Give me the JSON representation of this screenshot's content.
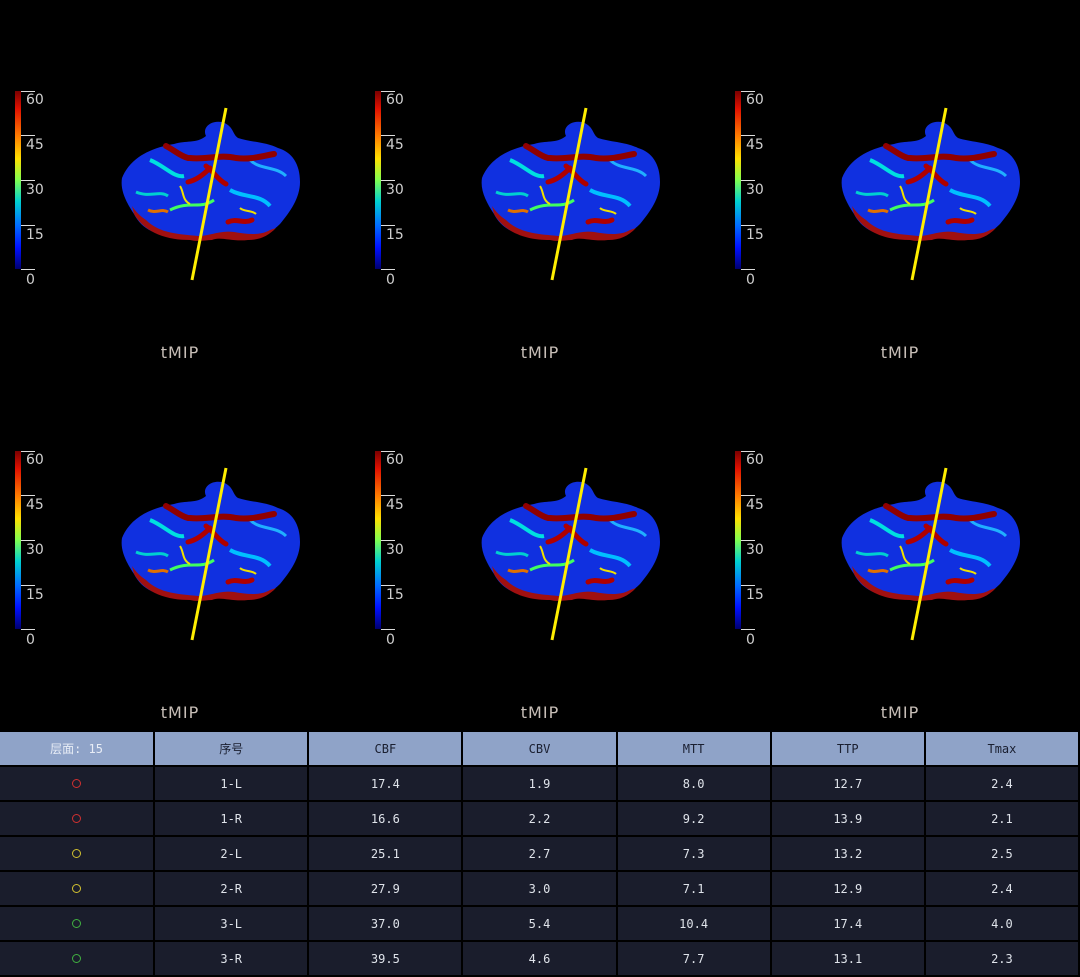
{
  "panels": [
    {
      "label": "tMIP",
      "scale_ticks": [
        "60",
        "45",
        "30",
        "15",
        "0"
      ]
    },
    {
      "label": "tMIP",
      "scale_ticks": [
        "60",
        "45",
        "30",
        "15",
        "0"
      ]
    },
    {
      "label": "tMIP",
      "scale_ticks": [
        "60",
        "45",
        "30",
        "15",
        "0"
      ]
    },
    {
      "label": "tMIP",
      "scale_ticks": [
        "60",
        "45",
        "30",
        "15",
        "0"
      ]
    },
    {
      "label": "tMIP",
      "scale_ticks": [
        "60",
        "45",
        "30",
        "15",
        "0"
      ]
    },
    {
      "label": "tMIP",
      "scale_ticks": [
        "60",
        "45",
        "30",
        "15",
        "0"
      ]
    }
  ],
  "table": {
    "headers": [
      "层面: 15",
      "序号",
      "CBF",
      "CBV",
      "MTT",
      "TTP",
      "Tmax"
    ],
    "rows": [
      {
        "marker_color": "#d03030",
        "id": "1-L",
        "cbf": "17.4",
        "cbv": "1.9",
        "mtt": "8.0",
        "ttp": "12.7",
        "tmax": "2.4"
      },
      {
        "marker_color": "#d03030",
        "id": "1-R",
        "cbf": "16.6",
        "cbv": "2.2",
        "mtt": "9.2",
        "ttp": "13.9",
        "tmax": "2.1"
      },
      {
        "marker_color": "#d0c030",
        "id": "2-L",
        "cbf": "25.1",
        "cbv": "2.7",
        "mtt": "7.3",
        "ttp": "13.2",
        "tmax": "2.5"
      },
      {
        "marker_color": "#d0c030",
        "id": "2-R",
        "cbf": "27.9",
        "cbv": "3.0",
        "mtt": "7.1",
        "ttp": "12.9",
        "tmax": "2.4"
      },
      {
        "marker_color": "#40b040",
        "id": "3-L",
        "cbf": "37.0",
        "cbv": "5.4",
        "mtt": "10.4",
        "ttp": "17.4",
        "tmax": "4.0"
      },
      {
        "marker_color": "#40b040",
        "id": "3-R",
        "cbf": "39.5",
        "cbv": "4.6",
        "mtt": "7.7",
        "ttp": "13.1",
        "tmax": "2.3"
      }
    ]
  },
  "colors": {
    "header_bg": "#8fa3c8",
    "row_bg": "#1a1d2c",
    "midline": "#ffee00"
  }
}
